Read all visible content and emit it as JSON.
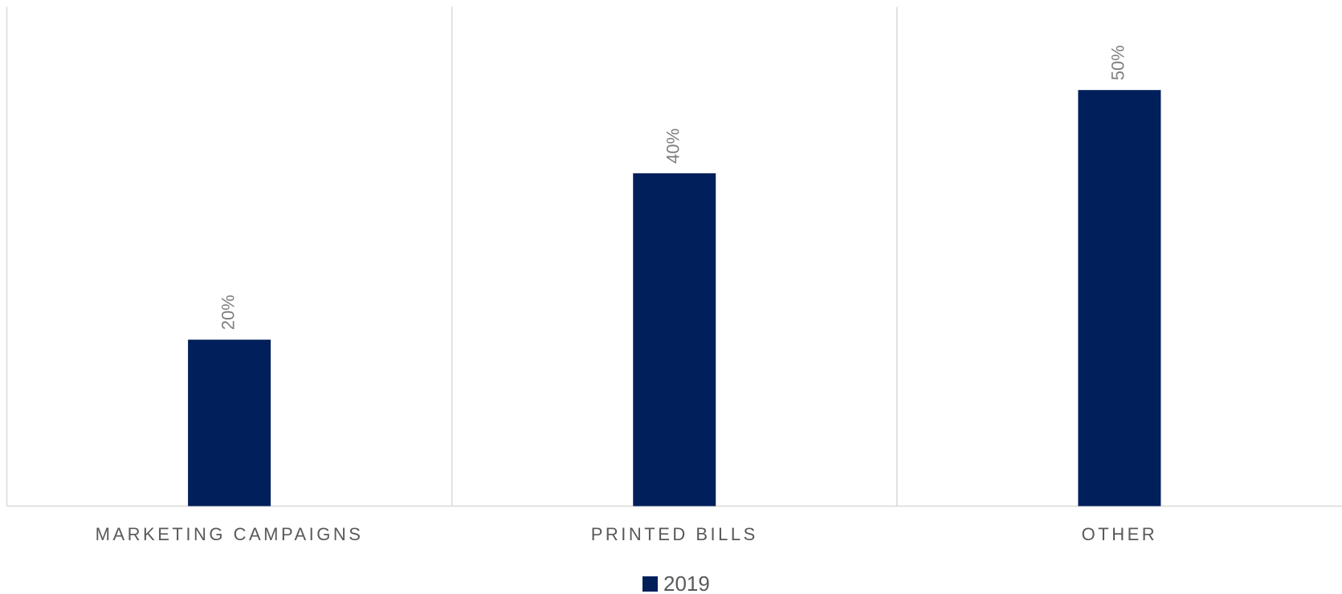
{
  "chart_data": {
    "type": "bar",
    "categories": [
      "MARKETING CAMPAIGNS",
      "PRINTED BILLS",
      "OTHER"
    ],
    "series": [
      {
        "name": "2019",
        "color": "#001f5b",
        "values": [
          20,
          40,
          50
        ],
        "value_labels": [
          "20%",
          "40%",
          "50%"
        ]
      }
    ],
    "ylim": [
      0,
      60
    ]
  }
}
